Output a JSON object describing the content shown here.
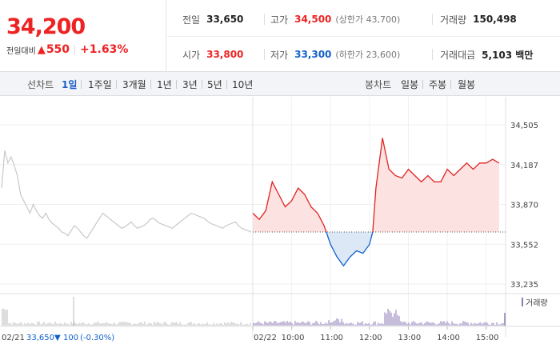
{
  "summary": {
    "price": "34,200",
    "change_label": "전일대비",
    "change_arrow": "▲",
    "change_value": "550",
    "change_pct": "+1.63%"
  },
  "stats": {
    "prev_close": {
      "label": "전일",
      "value": "33,650"
    },
    "high": {
      "label": "고가",
      "value": "34,500",
      "sub": "(상한가 43,700)"
    },
    "volume": {
      "label": "거래량",
      "value": "150,498"
    },
    "open": {
      "label": "시가",
      "value": "33,800"
    },
    "low": {
      "label": "저가",
      "value": "33,300",
      "sub": "(하한가 23,600)"
    },
    "amount": {
      "label": "거래대금",
      "value": "5,103 백만"
    }
  },
  "toolbar": {
    "line_label": "선차트",
    "line_periods": [
      "1일",
      "1주일",
      "3개월",
      "1년",
      "3년",
      "5년",
      "10년"
    ],
    "selected_period": "1일",
    "candle_label": "봉차트",
    "candle_periods": [
      "일봉",
      "주봉",
      "월봉"
    ]
  },
  "chart_data": {
    "type": "line",
    "y_ticks": [
      "34,505",
      "34,187",
      "33,870",
      "33,552",
      "33,235"
    ],
    "ylim": [
      33235,
      34505
    ],
    "x_ticks": [
      "02/22",
      "10:00",
      "11:00",
      "12:00",
      "13:00",
      "14:00",
      "15:00"
    ],
    "baseline": 33650,
    "volume_legend": "거래량",
    "prev_day_label": "02/21",
    "prev_day_close": "33,650",
    "prev_day_arrow": "▼",
    "prev_day_change": "100",
    "prev_day_pct": "(-0.30%)",
    "prev_day_series": [
      34000,
      34300,
      34200,
      34250,
      34180,
      34100,
      33950,
      33900,
      33850,
      33800,
      33870,
      33820,
      33780,
      33760,
      33800,
      33750,
      33720,
      33700,
      33680,
      33650,
      33640,
      33620,
      33660,
      33700,
      33680,
      33650,
      33620,
      33600,
      33640,
      33680,
      33720,
      33760,
      33800,
      33780,
      33760,
      33740,
      33720,
      33700,
      33680,
      33690,
      33710,
      33730,
      33700,
      33680,
      33690,
      33700,
      33720,
      33750,
      33760,
      33740,
      33720,
      33710,
      33700,
      33690,
      33680,
      33700,
      33720,
      33740,
      33760,
      33780,
      33800,
      33790,
      33780,
      33770,
      33760,
      33740,
      33720,
      33710,
      33700,
      33690,
      33680,
      33700,
      33710,
      33720,
      33730,
      33700,
      33680,
      33670,
      33660,
      33650
    ],
    "today_series": [
      [
        "09:00",
        33800
      ],
      [
        "09:10",
        33750
      ],
      [
        "09:20",
        33820
      ],
      [
        "09:30",
        34050
      ],
      [
        "09:40",
        33950
      ],
      [
        "09:50",
        33850
      ],
      [
        "10:00",
        33900
      ],
      [
        "10:10",
        34000
      ],
      [
        "10:20",
        33950
      ],
      [
        "10:30",
        33850
      ],
      [
        "10:40",
        33800
      ],
      [
        "10:50",
        33700
      ],
      [
        "11:00",
        33550
      ],
      [
        "11:10",
        33450
      ],
      [
        "11:20",
        33380
      ],
      [
        "11:30",
        33450
      ],
      [
        "11:40",
        33500
      ],
      [
        "11:50",
        33480
      ],
      [
        "12:00",
        33550
      ],
      [
        "12:05",
        33650
      ],
      [
        "12:10",
        34000
      ],
      [
        "12:20",
        34400
      ],
      [
        "12:30",
        34150
      ],
      [
        "12:40",
        34100
      ],
      [
        "12:50",
        34080
      ],
      [
        "13:00",
        34150
      ],
      [
        "13:10",
        34100
      ],
      [
        "13:20",
        34050
      ],
      [
        "13:30",
        34100
      ],
      [
        "13:40",
        34050
      ],
      [
        "13:50",
        34050
      ],
      [
        "14:00",
        34150
      ],
      [
        "14:10",
        34100
      ],
      [
        "14:20",
        34150
      ],
      [
        "14:30",
        34200
      ],
      [
        "14:40",
        34150
      ],
      [
        "14:50",
        34200
      ],
      [
        "15:00",
        34200
      ],
      [
        "15:10",
        34230
      ],
      [
        "15:20",
        34200
      ]
    ]
  },
  "colors": {
    "up": "#e22222",
    "down": "#1260cc",
    "accent": "#1d5fc9",
    "prev_line": "#c8c8c8",
    "volume": "#8b7bb5"
  }
}
